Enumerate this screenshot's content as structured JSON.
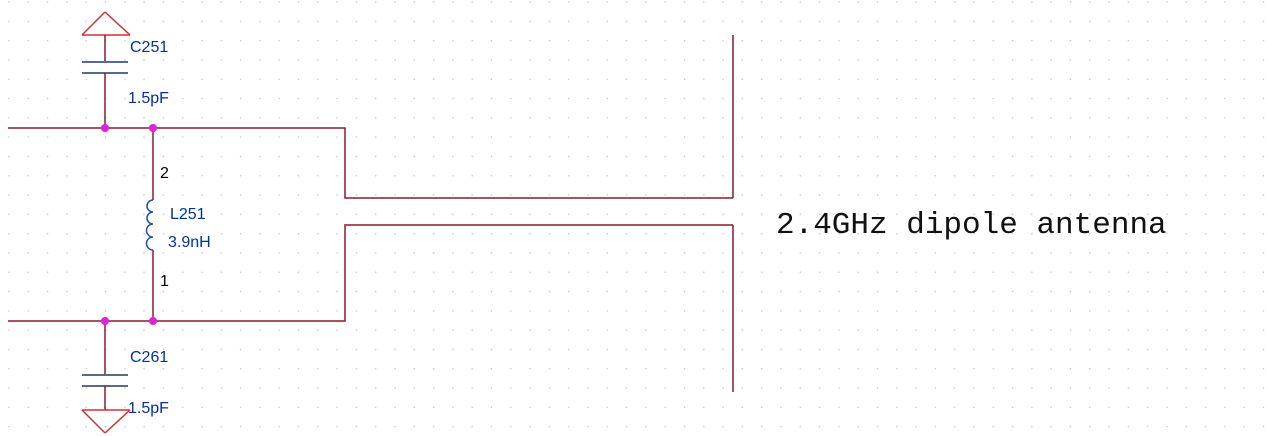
{
  "components": [
    {
      "ref": "C251",
      "value": "1.5pF"
    },
    {
      "ref": "L251",
      "value": "3.9nH",
      "pins": [
        "2",
        "1"
      ]
    },
    {
      "ref": "C261",
      "value": "1.5pF"
    }
  ],
  "antenna_label": "2.4GHz dipole antenna"
}
